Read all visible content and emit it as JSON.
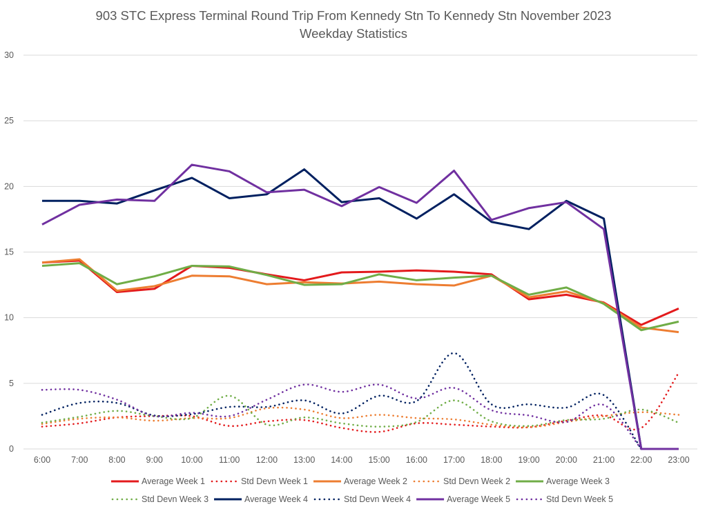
{
  "chart_data": {
    "type": "line",
    "title": "903 STC Express Terminal Round Trip From Kennedy Stn To Kennedy Stn November 2023",
    "subtitle": "Weekday Statistics",
    "xlabel": "",
    "ylabel": "",
    "ylim": [
      0,
      30
    ],
    "yticks": [
      "0",
      "5",
      "10",
      "15",
      "20",
      "25",
      "30"
    ],
    "ytick_values": [
      0,
      5,
      10,
      15,
      20,
      25,
      30
    ],
    "grid": true,
    "legend_position": "bottom",
    "categories": [
      "6:00",
      "7:00",
      "8:00",
      "9:00",
      "10:00",
      "11:00",
      "12:00",
      "13:00",
      "14:00",
      "15:00",
      "16:00",
      "17:00",
      "18:00",
      "19:00",
      "20:00",
      "21:00",
      "22:00",
      "23:00"
    ],
    "series": [
      {
        "name": "Average Week 1",
        "color": "#e31a1c",
        "style": "solid",
        "values": [
          14.2,
          14.35,
          11.95,
          12.2,
          13.95,
          13.8,
          13.3,
          12.85,
          13.45,
          13.5,
          13.6,
          13.5,
          13.3,
          11.4,
          11.75,
          11.15,
          9.45,
          10.7
        ]
      },
      {
        "name": "Std Devn Week 1",
        "color": "#e31a1c",
        "style": "dotted",
        "values": [
          1.7,
          1.95,
          2.4,
          2.5,
          2.5,
          1.75,
          2.1,
          2.2,
          1.6,
          1.3,
          1.95,
          1.85,
          1.7,
          1.65,
          2.15,
          2.55,
          1.6,
          5.8
        ]
      },
      {
        "name": "Average Week 2",
        "color": "#ed7d31",
        "style": "solid",
        "values": [
          14.2,
          14.45,
          12.05,
          12.4,
          13.2,
          13.15,
          12.55,
          12.7,
          12.6,
          12.75,
          12.55,
          12.45,
          13.2,
          11.55,
          12.0,
          11.1,
          9.25,
          8.9
        ]
      },
      {
        "name": "Std Devn Week 2",
        "color": "#ed7d31",
        "style": "dotted",
        "values": [
          1.9,
          2.3,
          2.4,
          2.15,
          2.35,
          2.35,
          3.1,
          3.0,
          2.35,
          2.6,
          2.35,
          2.25,
          1.85,
          1.65,
          2.05,
          2.5,
          2.8,
          2.6
        ]
      },
      {
        "name": "Average Week 3",
        "color": "#70ad47",
        "style": "solid",
        "values": [
          13.95,
          14.15,
          12.55,
          13.15,
          13.95,
          13.9,
          13.25,
          12.5,
          12.55,
          13.3,
          12.85,
          13.05,
          13.2,
          11.75,
          12.3,
          11.05,
          9.05,
          9.7
        ]
      },
      {
        "name": "Std Devn Week 3",
        "color": "#70ad47",
        "style": "dotted",
        "values": [
          2.0,
          2.45,
          2.9,
          2.5,
          2.35,
          4.05,
          1.85,
          2.4,
          1.95,
          1.7,
          2.05,
          3.7,
          2.1,
          1.75,
          2.2,
          2.3,
          3.0,
          2.0
        ]
      },
      {
        "name": "Average Week 4",
        "color": "#002060",
        "style": "solid",
        "values": [
          18.9,
          18.9,
          18.7,
          19.7,
          20.65,
          19.1,
          19.4,
          21.3,
          18.8,
          19.1,
          17.55,
          19.4,
          17.3,
          16.75,
          18.9,
          17.55,
          0,
          0
        ]
      },
      {
        "name": "Std Devn Week 4",
        "color": "#002060",
        "style": "dotted",
        "values": [
          2.6,
          3.5,
          3.5,
          2.55,
          2.65,
          3.2,
          3.2,
          3.7,
          2.7,
          4.05,
          3.65,
          7.3,
          3.4,
          3.4,
          3.15,
          4.1,
          0,
          null
        ]
      },
      {
        "name": "Average Week 5",
        "color": "#7030a0",
        "style": "solid",
        "values": [
          17.1,
          18.6,
          19.0,
          18.9,
          21.65,
          21.15,
          19.55,
          19.75,
          18.5,
          19.95,
          18.75,
          21.2,
          17.45,
          18.35,
          18.8,
          16.75,
          0,
          0
        ]
      },
      {
        "name": "Std Devn Week 5",
        "color": "#7030a0",
        "style": "dotted",
        "values": [
          4.5,
          4.5,
          3.75,
          2.5,
          2.75,
          2.5,
          3.75,
          4.9,
          4.35,
          4.9,
          3.85,
          4.65,
          2.95,
          2.55,
          2.05,
          3.35,
          0,
          null
        ]
      }
    ]
  }
}
